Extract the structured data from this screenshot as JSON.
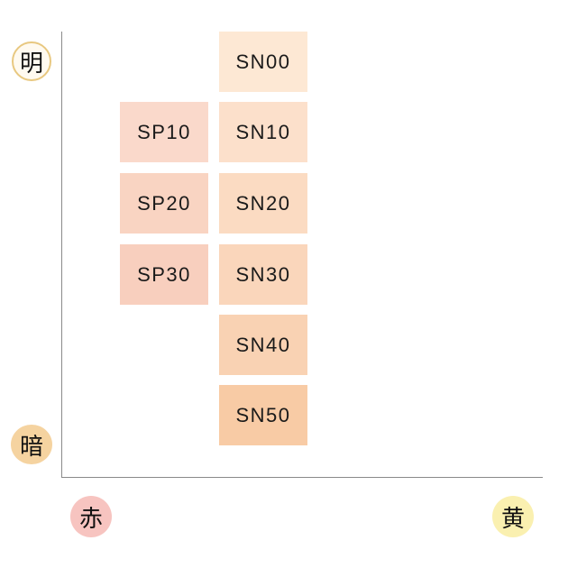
{
  "axis_labels": {
    "top": {
      "text": "明",
      "color": "#fffaf0",
      "border": "#e8c880"
    },
    "bottom": {
      "text": "暗",
      "color": "#f5d3a0"
    },
    "left": {
      "text": "赤",
      "color": "#f7c4c0"
    },
    "right": {
      "text": "黄",
      "color": "#faf0b0"
    }
  },
  "swatches": [
    {
      "label": "SN00",
      "color": "#fde8d4",
      "col": 1,
      "row": 0
    },
    {
      "label": "SP10",
      "color": "#fad9cb",
      "col": 0,
      "row": 1
    },
    {
      "label": "SN10",
      "color": "#fce0cb",
      "col": 1,
      "row": 1
    },
    {
      "label": "SP20",
      "color": "#f9d4c2",
      "col": 0,
      "row": 2
    },
    {
      "label": "SN20",
      "color": "#fbdbc2",
      "col": 1,
      "row": 2
    },
    {
      "label": "SP30",
      "color": "#f8cfbe",
      "col": 0,
      "row": 3
    },
    {
      "label": "SN30",
      "color": "#fad6bb",
      "col": 1,
      "row": 3
    },
    {
      "label": "SN40",
      "color": "#f9d2b3",
      "col": 1,
      "row": 4
    },
    {
      "label": "SN50",
      "color": "#f8cba5",
      "col": 1,
      "row": 5
    }
  ]
}
